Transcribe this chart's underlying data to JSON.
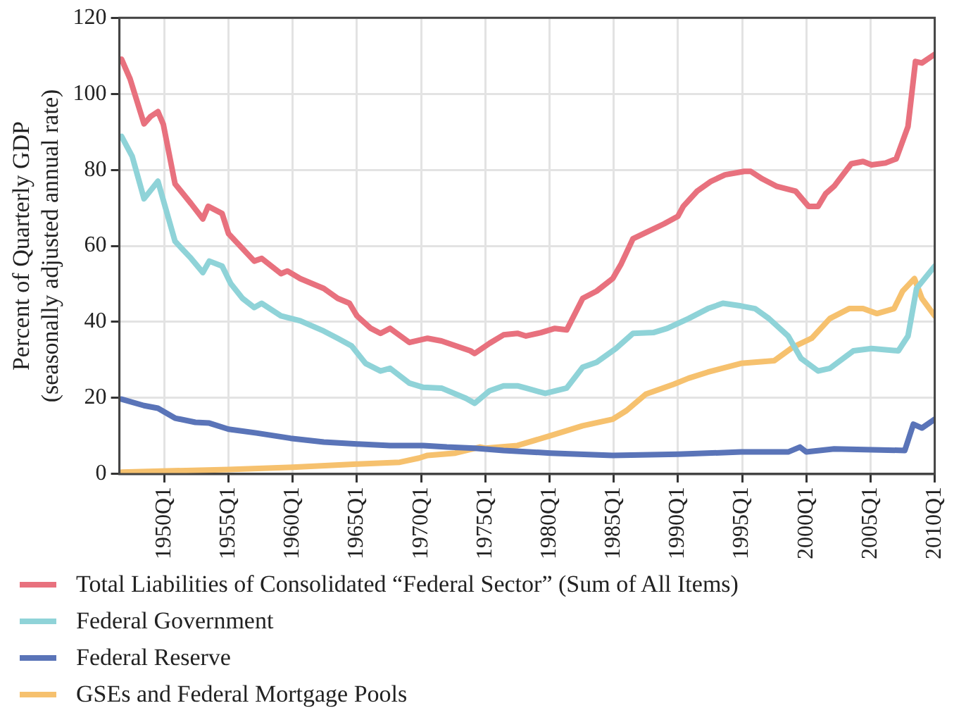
{
  "chart_data": {
    "type": "line",
    "ylabel": "Percent of Quarterly GDP\n(seasonally adjusted annual rate)",
    "xlim": [
      "1946-07",
      "2010-01"
    ],
    "xticks": [
      {
        "value": "1950-01",
        "label": "1950Q1"
      },
      {
        "value": "1955-01",
        "label": "1955Q1"
      },
      {
        "value": "1960-01",
        "label": "1960Q1"
      },
      {
        "value": "1965-01",
        "label": "1965Q1"
      },
      {
        "value": "1970-01",
        "label": "1970Q1"
      },
      {
        "value": "1975-01",
        "label": "1975Q1"
      },
      {
        "value": "1980-01",
        "label": "1980Q1"
      },
      {
        "value": "1985-01",
        "label": "1985Q1"
      },
      {
        "value": "1990-01",
        "label": "1990Q1"
      },
      {
        "value": "1995-01",
        "label": "1995Q1"
      },
      {
        "value": "2000-01",
        "label": "2000Q1"
      },
      {
        "value": "2005-01",
        "label": "2005Q1"
      },
      {
        "value": "2010-01",
        "label": "2010Q1"
      }
    ],
    "ylim": [
      0,
      120
    ],
    "yticks": [
      0,
      20,
      40,
      60,
      80,
      100,
      120
    ],
    "grid": true,
    "legend": "bottom",
    "marker": "none",
    "line_style": "solid",
    "series": [
      {
        "name": "Total Liabilities of Consolidated “Federal Sector” (Sum of All Items)",
        "color": "#e8717e",
        "x": [
          "1946-09",
          "1947-05",
          "1948-06",
          "1948-12",
          "1949-07",
          "1949-12",
          "1950-11",
          "1952-02",
          "1953-01",
          "1953-06",
          "1954-07",
          "1955-01",
          "1956-02",
          "1957-01",
          "1957-08",
          "1959-02",
          "1959-08",
          "1960-08",
          "1962-06",
          "1963-07",
          "1964-06",
          "1965-01",
          "1966-02",
          "1966-11",
          "1967-08",
          "1969-02",
          "1970-07",
          "1971-08",
          "1973-11",
          "1974-03",
          "1975-05",
          "1976-06",
          "1977-07",
          "1978-03",
          "1979-05",
          "1980-06",
          "1981-05",
          "1982-08",
          "1983-09",
          "1984-12",
          "1985-08",
          "1986-07",
          "1987-07",
          "1988-12",
          "1990-01",
          "1990-06",
          "1991-07",
          "1992-08",
          "1993-09",
          "1995-03",
          "1995-09",
          "1996-08",
          "1997-09",
          "1999-03",
          "2000-03",
          "2000-12",
          "2001-07",
          "2002-03",
          "2003-07",
          "2004-06",
          "2005-02",
          "2006-03",
          "2007-01",
          "2007-12",
          "2008-07",
          "2009-01",
          "2010-01"
        ],
        "values": [
          109.1,
          103.9,
          92.1,
          94,
          95.3,
          92,
          76.3,
          71.1,
          67.1,
          70.4,
          68.5,
          63.2,
          59.3,
          56,
          56.7,
          52.7,
          53.4,
          51.4,
          48.8,
          46.2,
          44.9,
          41.6,
          38.3,
          37,
          38.3,
          34.6,
          35.7,
          35,
          32.4,
          31.7,
          34.4,
          36.6,
          37,
          36.3,
          37.2,
          38.3,
          37.9,
          46.2,
          48.1,
          51.4,
          55.3,
          61.9,
          63.5,
          65.8,
          67.8,
          70.4,
          74.4,
          77,
          78.7,
          79.6,
          79.6,
          77.6,
          75.7,
          74.4,
          70.4,
          70.4,
          73.7,
          75.7,
          81.6,
          82.2,
          81.3,
          81.8,
          82.9,
          91.4,
          108.5,
          108.1,
          110.4
        ]
      },
      {
        "name": "Federal Government",
        "color": "#8fd3d8",
        "x": [
          "1946-09",
          "1947-07",
          "1948-06",
          "1949-07",
          "1950-11",
          "1952-02",
          "1953-01",
          "1953-07",
          "1954-07",
          "1955-03",
          "1956-02",
          "1957-01",
          "1957-08",
          "1959-02",
          "1960-08",
          "1962-06",
          "1963-07",
          "1964-08",
          "1965-09",
          "1966-11",
          "1967-08",
          "1969-02",
          "1970-03",
          "1971-08",
          "1973-07",
          "1974-03",
          "1975-05",
          "1976-06",
          "1977-07",
          "1978-03",
          "1979-09",
          "1981-05",
          "1982-08",
          "1983-09",
          "1985-03",
          "1986-07",
          "1988-02",
          "1989-03",
          "1990-11",
          "1992-05",
          "1993-07",
          "1994-12",
          "1996-01",
          "1997-02",
          "1998-08",
          "1999-08",
          "2000-12",
          "2001-11",
          "2003-09",
          "2005-02",
          "2007-03",
          "2007-12",
          "2008-08",
          "2010-01"
        ],
        "values": [
          88.8,
          83.5,
          72.4,
          77,
          61.2,
          56.7,
          53,
          56,
          54.7,
          50.1,
          46.2,
          43.8,
          44.9,
          41.6,
          40.3,
          37.6,
          35.7,
          33.7,
          29.1,
          27.1,
          27.8,
          23.9,
          22.8,
          22.6,
          19.9,
          18.6,
          21.9,
          23.2,
          23.2,
          22.6,
          21.2,
          22.6,
          28.1,
          29.4,
          33,
          37,
          37.2,
          38.3,
          40.9,
          43.5,
          44.9,
          44.2,
          43.5,
          40.9,
          36.3,
          30.4,
          27.1,
          27.8,
          32.4,
          33,
          32.4,
          36.3,
          48.8,
          54.7
        ]
      },
      {
        "name": "Federal Reserve",
        "color": "#5a74b8",
        "x": [
          "1946-09",
          "1948-06",
          "1949-07",
          "1950-11",
          "1952-06",
          "1953-07",
          "1955-01",
          "1957-03",
          "1959-11",
          "1962-06",
          "1965-01",
          "1967-08",
          "1970-03",
          "1972-01",
          "1974-03",
          "1976-06",
          "1980-02",
          "1984-12",
          "1990-01",
          "1994-12",
          "1998-08",
          "1999-07",
          "2000-01",
          "2002-03",
          "2007-09",
          "2008-05",
          "2009-01",
          "2010-01"
        ],
        "values": [
          19.7,
          18,
          17.3,
          14.7,
          13.6,
          13.4,
          11.8,
          10.8,
          9.4,
          8.4,
          7.9,
          7.5,
          7.5,
          7.1,
          6.8,
          6.2,
          5.5,
          4.9,
          5.2,
          5.8,
          5.8,
          7.1,
          5.8,
          6.6,
          6.2,
          13.1,
          12.1,
          14.4
        ]
      },
      {
        "name": "GSEs and Federal Mortgage Pools",
        "color": "#f6c16e",
        "x": [
          "1946-09",
          "1955-01",
          "1960-01",
          "1965-01",
          "1968-05",
          "1969-11",
          "1970-07",
          "1972-09",
          "1974-08",
          "1975-01",
          "1977-07",
          "1980-02",
          "1982-08",
          "1984-12",
          "1986-01",
          "1987-07",
          "1989-09",
          "1990-11",
          "1992-05",
          "1994-12",
          "1997-07",
          "1998-12",
          "2000-06",
          "2001-11",
          "2003-05",
          "2004-06",
          "2005-07",
          "2006-11",
          "2007-07",
          "2008-06",
          "2009-01",
          "2010-01"
        ],
        "values": [
          0.5,
          1.2,
          1.8,
          2.6,
          3.1,
          4.2,
          4.9,
          5.5,
          7.1,
          6.8,
          7.5,
          10.1,
          12.7,
          14.4,
          16.7,
          21,
          23.6,
          25.2,
          26.8,
          29.1,
          29.8,
          33.3,
          35.7,
          40.9,
          43.5,
          43.5,
          42.2,
          43.5,
          48.1,
          51.4,
          46.2,
          41.6
        ]
      }
    ]
  }
}
